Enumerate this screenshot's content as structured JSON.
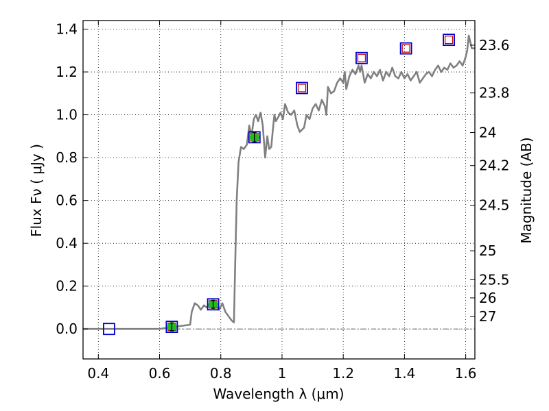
{
  "chart_data": {
    "type": "line",
    "title": "",
    "xlabel": "Wavelength  λ (μm)",
    "ylabel": "Flux  Fν  ( μJy )",
    "ylabel_right": "Magnitude (AB)",
    "xlim": [
      0.35,
      1.63
    ],
    "ylim": [
      -0.14,
      1.44
    ],
    "grid": true,
    "x_ticks": [
      0.4,
      0.6,
      0.8,
      1.0,
      1.2,
      1.4,
      1.6
    ],
    "x_tick_labels": [
      "0.4",
      "0.6",
      "0.8",
      "1",
      "1.2",
      "1.4",
      "1.6"
    ],
    "y_ticks": [
      0.0,
      0.2,
      0.4,
      0.6,
      0.8,
      1.0,
      1.2,
      1.4
    ],
    "y_tick_labels": [
      "0.0",
      "0.2",
      "0.4",
      "0.6",
      "0.8",
      "1.0",
      "1.2",
      "1.4"
    ],
    "right_ticks": [
      {
        "label": "23.6",
        "flux": 1.325
      },
      {
        "label": "23.8",
        "flux": 1.102
      },
      {
        "label": "24",
        "flux": 0.917
      },
      {
        "label": "24.2",
        "flux": 0.763
      },
      {
        "label": "24.5",
        "flux": 0.578
      },
      {
        "label": "25",
        "flux": 0.365
      },
      {
        "label": "25.5",
        "flux": 0.23
      },
      {
        "label": "26",
        "flux": 0.145
      },
      {
        "label": "27",
        "flux": 0.058
      }
    ],
    "colors": {
      "model": "#808080",
      "observed_box": "#0000cc",
      "model_box": "#cc0000",
      "detection": "#22bb22",
      "zero_line": "#555555"
    },
    "series": [
      {
        "kind": "model-spectrum",
        "x": [
          0.35,
          0.6,
          0.7,
          0.705,
          0.715,
          0.725,
          0.735,
          0.745,
          0.755,
          0.765,
          0.775,
          0.785,
          0.795,
          0.805,
          0.815,
          0.825,
          0.835,
          0.843,
          0.847,
          0.852,
          0.858,
          0.866,
          0.875,
          0.885,
          0.893,
          0.9,
          0.908,
          0.915,
          0.922,
          0.93,
          0.937,
          0.945,
          0.952,
          0.958,
          0.965,
          0.97,
          0.975,
          0.98,
          0.988,
          0.995,
          1.003,
          1.01,
          1.02,
          1.03,
          1.04,
          1.05,
          1.058,
          1.065,
          1.072,
          1.08,
          1.09,
          1.1,
          1.11,
          1.12,
          1.13,
          1.14,
          1.145,
          1.15,
          1.16,
          1.17,
          1.18,
          1.19,
          1.2,
          1.205,
          1.21,
          1.22,
          1.23,
          1.24,
          1.25,
          1.255,
          1.26,
          1.27,
          1.28,
          1.29,
          1.3,
          1.31,
          1.32,
          1.33,
          1.34,
          1.35,
          1.36,
          1.37,
          1.38,
          1.39,
          1.4,
          1.41,
          1.42,
          1.43,
          1.44,
          1.45,
          1.46,
          1.47,
          1.48,
          1.49,
          1.5,
          1.51,
          1.52,
          1.53,
          1.54,
          1.55,
          1.56,
          1.57,
          1.58,
          1.59,
          1.6,
          1.605,
          1.61,
          1.615,
          1.62,
          1.63
        ],
        "y": [
          0.0,
          0.0,
          0.02,
          0.08,
          0.12,
          0.11,
          0.09,
          0.11,
          0.1,
          0.12,
          0.13,
          0.11,
          0.09,
          0.12,
          0.08,
          0.06,
          0.04,
          0.03,
          0.3,
          0.6,
          0.78,
          0.85,
          0.84,
          0.86,
          0.95,
          0.9,
          0.98,
          1.0,
          0.97,
          1.01,
          0.95,
          0.8,
          0.9,
          0.84,
          0.85,
          0.93,
          1.0,
          0.97,
          0.99,
          1.01,
          0.98,
          1.05,
          1.01,
          1.0,
          1.02,
          0.95,
          0.92,
          0.93,
          0.94,
          1.0,
          0.98,
          1.03,
          1.05,
          1.02,
          1.07,
          1.04,
          1.0,
          1.13,
          1.1,
          1.11,
          1.15,
          1.17,
          1.15,
          1.2,
          1.12,
          1.18,
          1.21,
          1.19,
          1.23,
          1.2,
          1.23,
          1.15,
          1.19,
          1.17,
          1.2,
          1.18,
          1.21,
          1.16,
          1.2,
          1.18,
          1.22,
          1.18,
          1.17,
          1.2,
          1.17,
          1.19,
          1.16,
          1.18,
          1.2,
          1.15,
          1.17,
          1.19,
          1.2,
          1.18,
          1.21,
          1.23,
          1.2,
          1.22,
          1.21,
          1.24,
          1.22,
          1.23,
          1.25,
          1.23,
          1.27,
          1.3,
          1.37,
          1.34,
          1.31,
          1.31
        ]
      },
      {
        "kind": "observed-photometry",
        "x": [
          0.435,
          0.64,
          0.775,
          0.91,
          1.065,
          1.26,
          1.405,
          1.545
        ],
        "y": [
          0.0,
          0.01,
          0.115,
          0.895,
          1.125,
          1.265,
          1.31,
          1.35
        ]
      },
      {
        "kind": "model-photometry",
        "x": [
          1.065,
          1.26,
          1.405,
          1.545
        ],
        "y": [
          1.125,
          1.265,
          1.31,
          1.35
        ]
      },
      {
        "kind": "detections",
        "x": [
          0.64,
          0.775,
          0.91
        ],
        "y": [
          0.01,
          0.115,
          0.895
        ],
        "yerr": [
          0.018,
          0.018,
          0.022
        ]
      }
    ]
  }
}
